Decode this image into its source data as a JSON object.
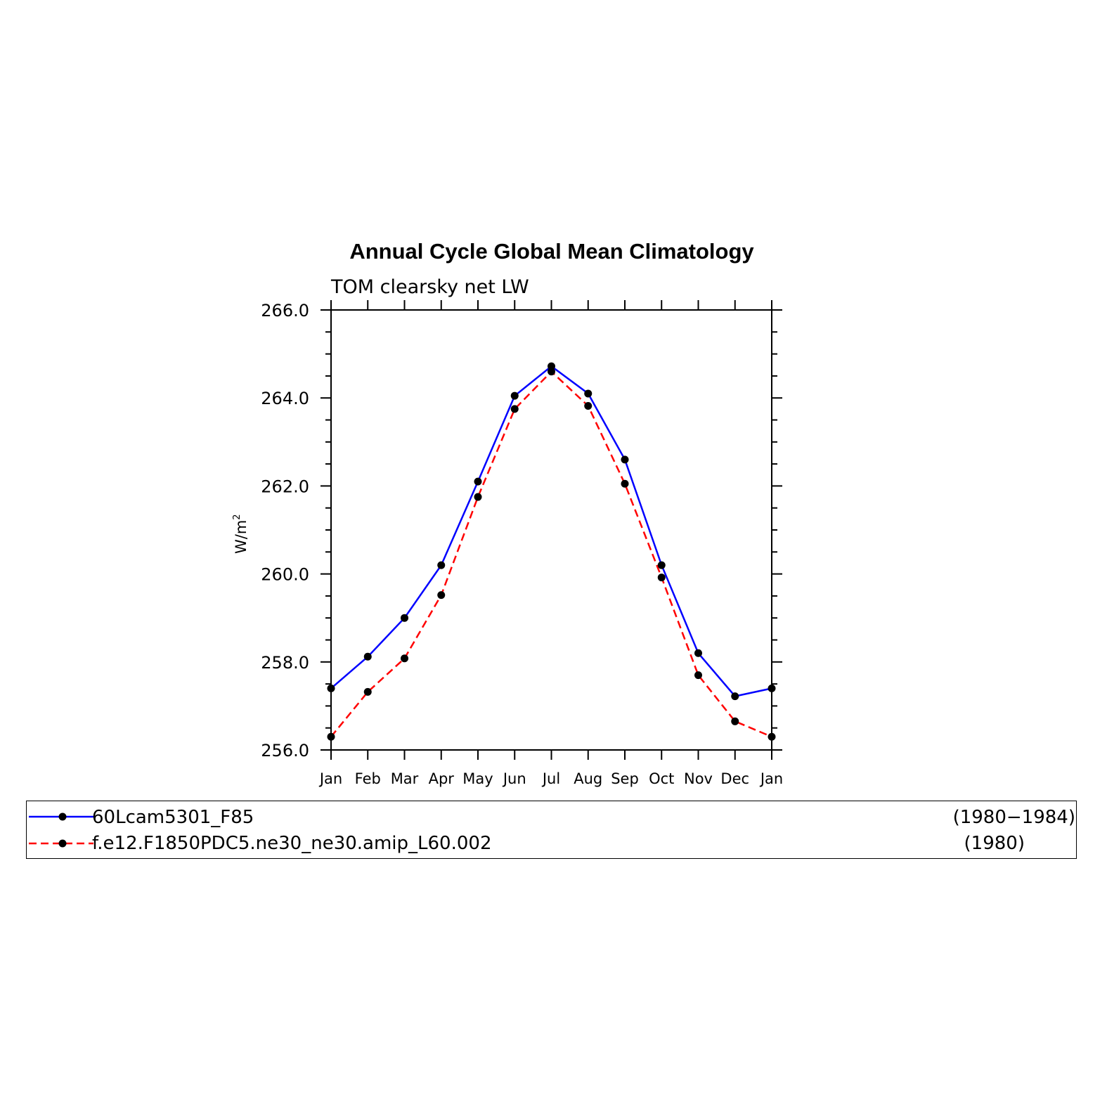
{
  "chart_data": {
    "type": "line",
    "title": "Annual Cycle Global Mean Climatology",
    "subtitle": "TOM clearsky net LW",
    "ylabel": "W/m",
    "ylabel_superscript": "2",
    "ylim": [
      256.0,
      266.0
    ],
    "yticks": [
      "256.0",
      "258.0",
      "260.0",
      "262.0",
      "264.0",
      "266.0"
    ],
    "categories": [
      "Jan",
      "Feb",
      "Mar",
      "Apr",
      "May",
      "Jun",
      "Jul",
      "Aug",
      "Sep",
      "Oct",
      "Nov",
      "Dec",
      "Jan"
    ],
    "series": [
      {
        "name": "60Lcam5301_F85",
        "years": "(1980−1984)",
        "color": "#0000ff",
        "style": "solid",
        "values": [
          257.4,
          258.12,
          259.0,
          260.2,
          262.1,
          264.05,
          264.72,
          264.1,
          262.6,
          260.2,
          258.2,
          257.22,
          257.4
        ]
      },
      {
        "name": "f.e12.F1850PDC5.ne30_ne30.amip_L60.002",
        "years": "(1980)",
        "color": "#ff0000",
        "style": "dashed",
        "values": [
          256.3,
          257.32,
          258.08,
          259.52,
          261.75,
          263.75,
          264.6,
          263.82,
          262.05,
          259.92,
          257.7,
          256.65,
          256.3
        ]
      }
    ],
    "marker_color": "#000000",
    "grid": false,
    "legend_position": "bottom"
  }
}
